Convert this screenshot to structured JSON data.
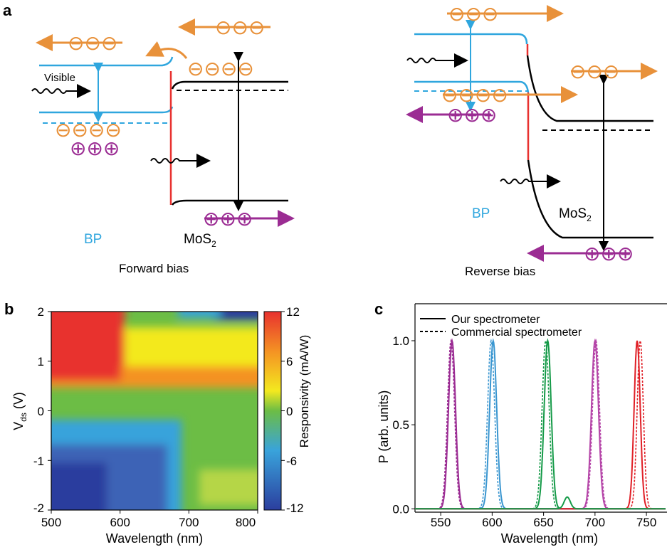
{
  "panel_a": {
    "label": "a",
    "forward": {
      "caption": "Forward bias",
      "bp_label": "BP",
      "mos2_label": "MoS",
      "mos2_sub": "2",
      "visible_label": "Visible",
      "electrons_top": "⊖⊖⊖",
      "electrons_right": "⊖⊖⊖",
      "electrons_mid": "⊖⊖⊖⊖",
      "electrons_bottom": "⊖⊖⊖⊖",
      "holes_bp": "⊕⊕⊕",
      "holes_mos2": "⊕⊕⊕"
    },
    "reverse": {
      "caption": "Reverse bias",
      "bp_label": "BP",
      "mos2_label": "MoS",
      "mos2_sub": "2",
      "electrons_top": "⊖⊖⊖",
      "electrons_mid": "⊖⊖⊖⊖",
      "electrons_right": "⊖⊖⊖",
      "holes_bp": "⊕⊕⊕",
      "holes_mos2": "⊕⊕⊕"
    },
    "colors": {
      "bp": "#2fa6de",
      "mos2": "#000000",
      "junction": "#e8312f",
      "electron": "#e8913a",
      "hole": "#9b2c93"
    }
  },
  "panel_b": {
    "label": "b",
    "xlabel": "Wavelength (nm)",
    "ylabel_main": "V",
    "ylabel_sub": "ds",
    "ylabel_unit": " (V)",
    "xticks": [
      "500",
      "600",
      "700",
      "800"
    ],
    "yticks": [
      "2",
      "1",
      "0",
      "-1",
      "-2"
    ],
    "colorbar_label": "Responsivity (mA/W)",
    "colorbar_ticks": [
      "12",
      "6",
      "0",
      "-6",
      "-12"
    ],
    "chart_data": {
      "type": "heatmap",
      "xlim": [
        500,
        800
      ],
      "ylim": [
        -2,
        2
      ],
      "zlim": [
        -12,
        12
      ],
      "colormap": [
        "#2b3e9e",
        "#39a3db",
        "#6cbd45",
        "#f3e91f",
        "#f49223",
        "#e8312f"
      ],
      "regions": [
        {
          "description_x": [
            500,
            580
          ],
          "description_y": [
            1.0,
            2.0
          ],
          "value": 12
        },
        {
          "description_x": [
            500,
            800
          ],
          "description_y": [
            0.6,
            1.5
          ],
          "value": 7
        },
        {
          "description_x": [
            500,
            800
          ],
          "description_y": [
            -0.3,
            0.5
          ],
          "value": 0
        },
        {
          "description_x": [
            500,
            690
          ],
          "description_y": [
            -2.0,
            -0.3
          ],
          "value": -9
        },
        {
          "description_x": [
            700,
            800
          ],
          "description_y": [
            1.8,
            2.0
          ],
          "value": -10
        }
      ]
    }
  },
  "panel_c": {
    "label": "c",
    "xlabel": "Wavelength (nm)",
    "ylabel": "P (arb. units)",
    "xticks": [
      "550",
      "600",
      "650",
      "700",
      "750"
    ],
    "yticks": [
      "0.0",
      "0.5",
      "1.0"
    ],
    "legend": {
      "solid": "Our spectrometer",
      "dashed": "Commercial spectrometer"
    },
    "chart_data": {
      "type": "line",
      "xlim": [
        525,
        770
      ],
      "ylim": [
        -0.02,
        1.22
      ],
      "peaks": [
        {
          "color": "#9b2c93",
          "center_ours": 561,
          "center_commercial": 560,
          "fwhm": 8,
          "height": 1.0
        },
        {
          "color": "#3a96d0",
          "center_ours": 601,
          "center_commercial": 599,
          "fwhm": 8,
          "height": 1.0
        },
        {
          "color": "#159a48",
          "center_ours": 654,
          "center_commercial": 652,
          "fwhm": 8,
          "height": 1.0
        },
        {
          "color": "#b545a8",
          "center_ours": 700,
          "center_commercial": 701,
          "fwhm": 8,
          "height": 1.0
        },
        {
          "color": "#e01f26",
          "center_ours": 741,
          "center_commercial": 744,
          "fwhm": 7,
          "height": 1.0
        }
      ],
      "secondary_peak": {
        "color": "#159a48",
        "center": 673,
        "height": 0.07,
        "fwhm": 7
      }
    }
  }
}
